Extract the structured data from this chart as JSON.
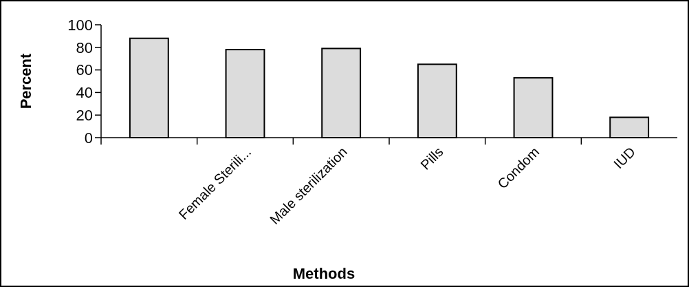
{
  "chart_data": {
    "type": "bar",
    "xlabel": "Methods",
    "ylabel": "Percent",
    "categories": [
      null,
      "Female Sterili...",
      "Male sterilization",
      "Pills",
      "Condom",
      "IUD"
    ],
    "values": [
      88,
      78,
      79,
      65,
      53,
      18
    ],
    "color": "#dcdcdc",
    "ylim": [
      0,
      100
    ],
    "yticks": [
      0,
      20,
      40,
      60,
      80,
      100
    ],
    "grid": false
  }
}
